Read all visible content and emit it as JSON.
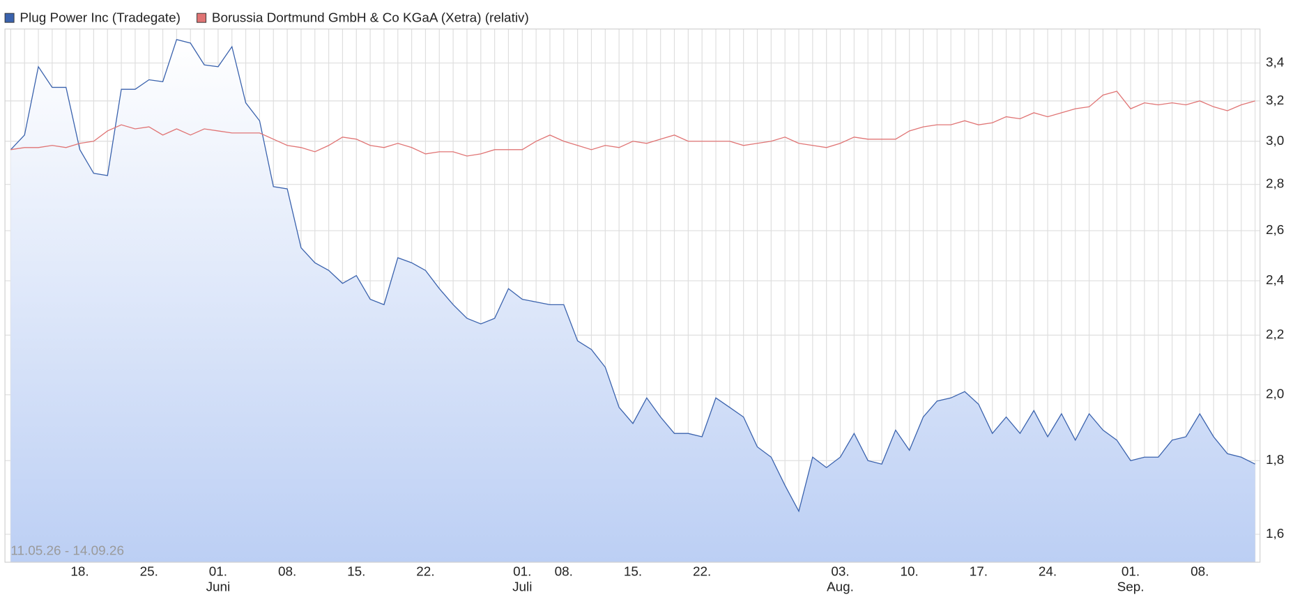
{
  "chart_data": {
    "type": "line",
    "date_range": "11.05.26 - 14.09.26",
    "categories": [
      null,
      null,
      null,
      null,
      null,
      "18.",
      null,
      null,
      null,
      null,
      "25.",
      null,
      null,
      null,
      null,
      "01.",
      null,
      null,
      null,
      null,
      "08.",
      null,
      null,
      null,
      null,
      "15.",
      null,
      null,
      null,
      null,
      "22.",
      null,
      null,
      null,
      null,
      null,
      null,
      "01.",
      null,
      null,
      "08.",
      null,
      null,
      null,
      null,
      "15.",
      null,
      null,
      null,
      null,
      "22.",
      null,
      null,
      null,
      null,
      null,
      null,
      null,
      null,
      null,
      "03.",
      null,
      null,
      null,
      null,
      "10.",
      null,
      null,
      null,
      null,
      "17.",
      null,
      null,
      null,
      null,
      "24.",
      null,
      null,
      null,
      null,
      null,
      "01.",
      null,
      null,
      null,
      null,
      "08.",
      null,
      null,
      null,
      null
    ],
    "months": [
      null,
      null,
      null,
      null,
      null,
      null,
      null,
      null,
      null,
      null,
      null,
      null,
      null,
      null,
      null,
      "Juni",
      null,
      null,
      null,
      null,
      null,
      null,
      null,
      null,
      null,
      null,
      null,
      null,
      null,
      null,
      null,
      null,
      null,
      null,
      null,
      null,
      null,
      "Juli",
      null,
      null,
      null,
      null,
      null,
      null,
      null,
      null,
      null,
      null,
      null,
      null,
      null,
      null,
      null,
      null,
      null,
      null,
      null,
      null,
      null,
      null,
      "Aug.",
      null,
      null,
      null,
      null,
      null,
      null,
      null,
      null,
      null,
      null,
      null,
      null,
      null,
      null,
      null,
      null,
      null,
      null,
      null,
      null,
      "Sep.",
      null,
      null,
      null,
      null,
      null,
      null,
      null,
      null,
      null
    ],
    "series": [
      {
        "name": "Plug Power Inc (Tradegate)",
        "color": "#3a62ad",
        "area": true,
        "values": [
          2.96,
          3.03,
          3.38,
          3.27,
          3.27,
          2.96,
          2.85,
          2.84,
          3.26,
          3.26,
          3.31,
          3.3,
          3.53,
          3.51,
          3.39,
          3.38,
          3.49,
          3.19,
          3.1,
          2.79,
          2.78,
          2.53,
          2.47,
          2.44,
          2.39,
          2.42,
          2.33,
          2.31,
          2.49,
          2.47,
          2.44,
          2.37,
          2.31,
          2.26,
          2.24,
          2.26,
          2.37,
          2.33,
          2.32,
          2.31,
          2.31,
          2.18,
          2.15,
          2.09,
          1.96,
          1.91,
          1.99,
          1.93,
          1.88,
          1.88,
          1.87,
          1.99,
          1.96,
          1.93,
          1.84,
          1.81,
          1.73,
          1.66,
          1.81,
          1.78,
          1.81,
          1.88,
          1.8,
          1.79,
          1.89,
          1.83,
          1.93,
          1.98,
          1.99,
          2.01,
          1.97,
          1.88,
          1.93,
          1.88,
          1.95,
          1.87,
          1.94,
          1.86,
          1.94,
          1.89,
          1.86,
          1.8,
          1.81,
          1.81,
          1.86,
          1.87,
          1.94,
          1.87,
          1.82,
          1.81,
          1.79
        ]
      },
      {
        "name": "Borussia Dortmund GmbH & Co KGaA (Xetra) (relativ)",
        "color": "#e07474",
        "area": false,
        "values": [
          2.96,
          2.97,
          2.97,
          2.98,
          2.97,
          2.99,
          3.0,
          3.05,
          3.08,
          3.06,
          3.07,
          3.03,
          3.06,
          3.03,
          3.06,
          3.05,
          3.04,
          3.04,
          3.04,
          3.01,
          2.98,
          2.97,
          2.95,
          2.98,
          3.02,
          3.01,
          2.98,
          2.97,
          2.99,
          2.97,
          2.94,
          2.95,
          2.95,
          2.93,
          2.94,
          2.96,
          2.96,
          2.96,
          3.0,
          3.03,
          3.0,
          2.98,
          2.96,
          2.98,
          2.97,
          3.0,
          2.99,
          3.01,
          3.03,
          3.0,
          3.0,
          3.0,
          3.0,
          2.98,
          2.99,
          3.0,
          3.02,
          2.99,
          2.98,
          2.97,
          2.99,
          3.02,
          3.01,
          3.01,
          3.01,
          3.05,
          3.07,
          3.08,
          3.08,
          3.1,
          3.08,
          3.09,
          3.12,
          3.11,
          3.14,
          3.12,
          3.14,
          3.16,
          3.17,
          3.23,
          3.25,
          3.16,
          3.19,
          3.18,
          3.19,
          3.18,
          3.2,
          3.17,
          3.15,
          3.18,
          3.2
        ]
      }
    ],
    "log_scale": true,
    "grid": true,
    "ylim": [
      1.53,
      3.59
    ],
    "yticks": [
      {
        "value": 1.6,
        "label": "1,6"
      },
      {
        "value": 1.8,
        "label": "1,8"
      },
      {
        "value": 2.0,
        "label": "2,0"
      },
      {
        "value": 2.2,
        "label": "2,2"
      },
      {
        "value": 2.4,
        "label": "2,4"
      },
      {
        "value": 2.6,
        "label": "2,6"
      },
      {
        "value": 2.8,
        "label": "2,8"
      },
      {
        "value": 3.0,
        "label": "3,0"
      },
      {
        "value": 3.2,
        "label": "3,2"
      },
      {
        "value": 3.4,
        "label": "3,4"
      }
    ],
    "legend": "top-left"
  }
}
